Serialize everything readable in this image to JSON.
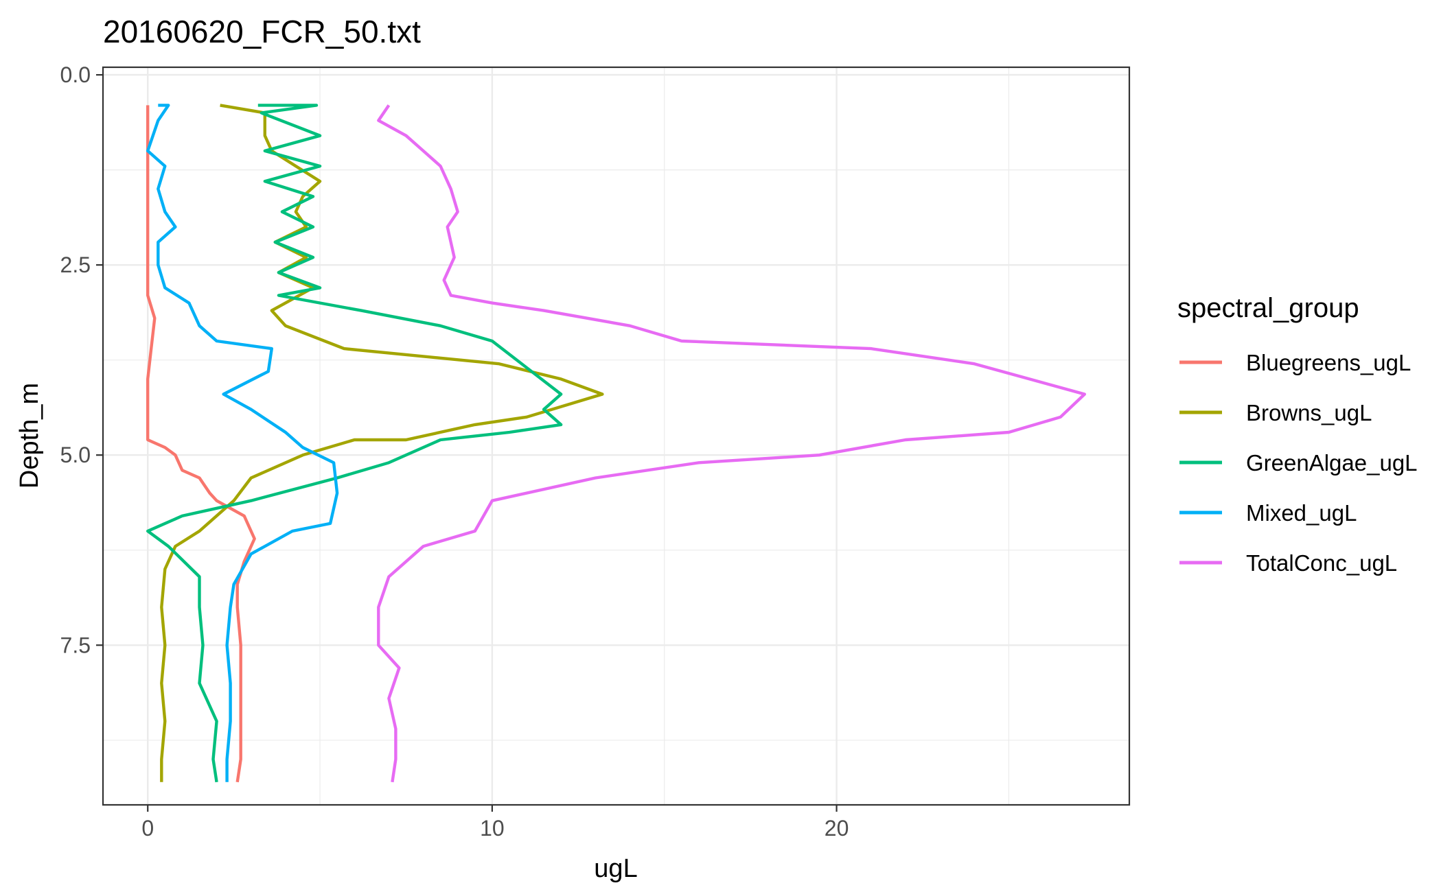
{
  "chart_data": {
    "type": "line",
    "title": "20160620_FCR_50.txt",
    "xlabel": "ugL",
    "ylabel": "Depth_m",
    "xlim": [
      -1.3,
      28.5
    ],
    "ylim": [
      9.6,
      -0.1
    ],
    "y_reversed": true,
    "x_ticks": [
      0,
      10,
      20
    ],
    "x_tick_labels": [
      "0",
      "10",
      "20"
    ],
    "y_ticks": [
      0.0,
      2.5,
      5.0,
      7.5
    ],
    "y_tick_labels": [
      "0.0",
      "2.5",
      "5.0",
      "7.5"
    ],
    "grid": true,
    "legend": {
      "title": "spectral_group",
      "position": "right"
    },
    "series": [
      {
        "name": "Bluegreens_ugL",
        "color": "#F8766D",
        "points": [
          [
            0.0,
            0.4
          ],
          [
            0.0,
            1.0
          ],
          [
            0.0,
            1.5
          ],
          [
            0.0,
            2.0
          ],
          [
            0.0,
            2.5
          ],
          [
            0.0,
            2.9
          ],
          [
            0.2,
            3.2
          ],
          [
            0.1,
            3.6
          ],
          [
            0.0,
            4.0
          ],
          [
            0.0,
            4.5
          ],
          [
            0.0,
            4.8
          ],
          [
            0.5,
            4.9
          ],
          [
            0.8,
            5.0
          ],
          [
            1.0,
            5.2
          ],
          [
            1.5,
            5.3
          ],
          [
            1.8,
            5.5
          ],
          [
            2.0,
            5.6
          ],
          [
            2.8,
            5.8
          ],
          [
            3.1,
            6.1
          ],
          [
            2.8,
            6.4
          ],
          [
            2.6,
            6.7
          ],
          [
            2.6,
            7.0
          ],
          [
            2.7,
            7.5
          ],
          [
            2.7,
            8.0
          ],
          [
            2.7,
            8.5
          ],
          [
            2.7,
            9.0
          ],
          [
            2.6,
            9.3
          ]
        ]
      },
      {
        "name": "Browns_ugL",
        "color": "#A3A500",
        "points": [
          [
            2.1,
            0.4
          ],
          [
            3.4,
            0.5
          ],
          [
            3.4,
            0.8
          ],
          [
            3.6,
            1.0
          ],
          [
            4.3,
            1.2
          ],
          [
            5.0,
            1.4
          ],
          [
            4.5,
            1.6
          ],
          [
            4.3,
            1.8
          ],
          [
            4.6,
            2.0
          ],
          [
            3.7,
            2.2
          ],
          [
            4.6,
            2.4
          ],
          [
            3.8,
            2.6
          ],
          [
            4.8,
            2.8
          ],
          [
            3.6,
            3.1
          ],
          [
            4.0,
            3.3
          ],
          [
            5.7,
            3.6
          ],
          [
            10.2,
            3.8
          ],
          [
            12.0,
            4.0
          ],
          [
            13.2,
            4.2
          ],
          [
            11.0,
            4.5
          ],
          [
            9.5,
            4.6
          ],
          [
            7.5,
            4.8
          ],
          [
            6.0,
            4.8
          ],
          [
            4.5,
            5.0
          ],
          [
            3.0,
            5.3
          ],
          [
            2.5,
            5.6
          ],
          [
            1.5,
            6.0
          ],
          [
            0.8,
            6.2
          ],
          [
            0.5,
            6.5
          ],
          [
            0.4,
            7.0
          ],
          [
            0.5,
            7.5
          ],
          [
            0.4,
            8.0
          ],
          [
            0.5,
            8.5
          ],
          [
            0.4,
            9.0
          ],
          [
            0.4,
            9.3
          ]
        ]
      },
      {
        "name": "GreenAlgae_ugL",
        "color": "#00BF7D",
        "points": [
          [
            3.2,
            0.4
          ],
          [
            4.9,
            0.4
          ],
          [
            3.3,
            0.5
          ],
          [
            5.0,
            0.8
          ],
          [
            3.4,
            1.0
          ],
          [
            5.0,
            1.2
          ],
          [
            3.4,
            1.4
          ],
          [
            4.8,
            1.6
          ],
          [
            3.9,
            1.8
          ],
          [
            4.8,
            2.0
          ],
          [
            3.7,
            2.2
          ],
          [
            4.8,
            2.4
          ],
          [
            3.8,
            2.6
          ],
          [
            5.0,
            2.8
          ],
          [
            3.8,
            2.9
          ],
          [
            6.2,
            3.1
          ],
          [
            8.5,
            3.3
          ],
          [
            10.0,
            3.5
          ],
          [
            12.0,
            4.2
          ],
          [
            11.5,
            4.4
          ],
          [
            12.0,
            4.6
          ],
          [
            10.5,
            4.7
          ],
          [
            8.5,
            4.8
          ],
          [
            7.0,
            5.1
          ],
          [
            5.5,
            5.3
          ],
          [
            3.0,
            5.6
          ],
          [
            1.0,
            5.8
          ],
          [
            0.0,
            6.0
          ],
          [
            0.6,
            6.2
          ],
          [
            1.5,
            6.6
          ],
          [
            1.5,
            7.0
          ],
          [
            1.6,
            7.5
          ],
          [
            1.5,
            8.0
          ],
          [
            2.0,
            8.5
          ],
          [
            1.9,
            9.0
          ],
          [
            2.0,
            9.3
          ]
        ]
      },
      {
        "name": "Mixed_ugL",
        "color": "#00B0F6",
        "points": [
          [
            0.3,
            0.4
          ],
          [
            0.6,
            0.4
          ],
          [
            0.3,
            0.6
          ],
          [
            0.0,
            1.0
          ],
          [
            0.5,
            1.2
          ],
          [
            0.3,
            1.5
          ],
          [
            0.5,
            1.8
          ],
          [
            0.8,
            2.0
          ],
          [
            0.3,
            2.2
          ],
          [
            0.3,
            2.5
          ],
          [
            0.5,
            2.8
          ],
          [
            1.2,
            3.0
          ],
          [
            1.5,
            3.3
          ],
          [
            2.0,
            3.5
          ],
          [
            3.6,
            3.6
          ],
          [
            3.5,
            3.9
          ],
          [
            2.2,
            4.2
          ],
          [
            3.0,
            4.4
          ],
          [
            4.0,
            4.7
          ],
          [
            4.5,
            4.9
          ],
          [
            5.4,
            5.1
          ],
          [
            5.5,
            5.5
          ],
          [
            5.3,
            5.9
          ],
          [
            4.2,
            6.0
          ],
          [
            3.0,
            6.3
          ],
          [
            2.5,
            6.7
          ],
          [
            2.4,
            7.0
          ],
          [
            2.3,
            7.5
          ],
          [
            2.4,
            8.0
          ],
          [
            2.4,
            8.5
          ],
          [
            2.3,
            9.0
          ],
          [
            2.3,
            9.3
          ]
        ]
      },
      {
        "name": "TotalConc_ugL",
        "color": "#E76BF3",
        "points": [
          [
            7.0,
            0.4
          ],
          [
            6.7,
            0.6
          ],
          [
            7.5,
            0.8
          ],
          [
            8.0,
            1.0
          ],
          [
            8.5,
            1.2
          ],
          [
            8.8,
            1.5
          ],
          [
            9.0,
            1.8
          ],
          [
            8.7,
            2.0
          ],
          [
            8.9,
            2.4
          ],
          [
            8.6,
            2.7
          ],
          [
            8.8,
            2.9
          ],
          [
            10.0,
            3.0
          ],
          [
            11.5,
            3.1
          ],
          [
            14.0,
            3.3
          ],
          [
            15.5,
            3.5
          ],
          [
            21.0,
            3.6
          ],
          [
            24.0,
            3.8
          ],
          [
            27.2,
            4.2
          ],
          [
            26.5,
            4.5
          ],
          [
            25.0,
            4.7
          ],
          [
            22.0,
            4.8
          ],
          [
            19.5,
            5.0
          ],
          [
            16.0,
            5.1
          ],
          [
            13.0,
            5.3
          ],
          [
            10.0,
            5.6
          ],
          [
            9.5,
            6.0
          ],
          [
            8.0,
            6.2
          ],
          [
            7.0,
            6.6
          ],
          [
            6.7,
            7.0
          ],
          [
            6.7,
            7.5
          ],
          [
            7.3,
            7.8
          ],
          [
            7.0,
            8.2
          ],
          [
            7.2,
            8.6
          ],
          [
            7.2,
            9.0
          ],
          [
            7.1,
            9.3
          ]
        ]
      }
    ]
  }
}
